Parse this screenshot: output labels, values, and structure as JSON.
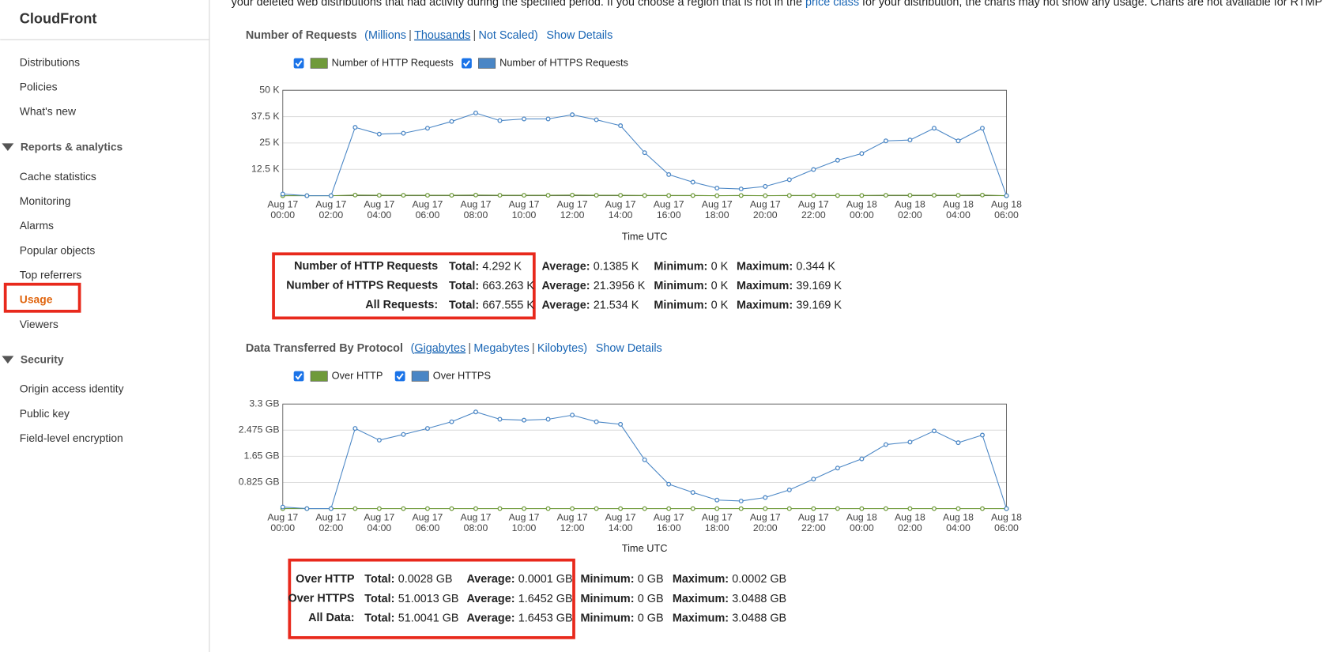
{
  "sidebar": {
    "title": "CloudFront",
    "items": [
      "Distributions",
      "Policies",
      "What's new"
    ],
    "groups": [
      {
        "title": "Reports & analytics",
        "items": [
          "Cache statistics",
          "Monitoring",
          "Alarms",
          "Popular objects",
          "Top referrers",
          "Usage",
          "Viewers"
        ]
      },
      {
        "title": "Security",
        "items": [
          "Origin access identity",
          "Public key",
          "Field-level encryption"
        ]
      }
    ]
  },
  "intro": {
    "text_before": "your deleted web distributions that had activity during the specified period. If you choose a region that is not in the ",
    "link": "price class",
    "text_after": " for your distribution, the charts may not show any usage. Charts are not available for RTMP di"
  },
  "sections": [
    {
      "title": "Number of Requests",
      "open": "(",
      "scales": [
        "Millions",
        "Thousands",
        "Not Scaled"
      ],
      "separator": "|",
      "close": ")",
      "details": "Show Details",
      "stats": {
        "labels": [
          "Total:",
          "Average:",
          "Minimum:",
          "Maximum:"
        ],
        "rows": [
          {
            "name": "Number of HTTP Requests",
            "values": [
              "4.292 K",
              "0.1385 K",
              "0 K",
              "0.344 K"
            ]
          },
          {
            "name": "Number of HTTPS Requests",
            "values": [
              "663.263 K",
              "21.3956 K",
              "0 K",
              "39.169 K"
            ]
          },
          {
            "name": "All Requests:",
            "values": [
              "667.555 K",
              "21.534 K",
              "0 K",
              "39.169 K"
            ]
          }
        ]
      }
    },
    {
      "title": "Data Transferred By Protocol",
      "open": "(",
      "scales": [
        "Gigabytes",
        "Megabytes",
        "Kilobytes"
      ],
      "separator": "|",
      "close": ")",
      "details": "Show Details",
      "stats": {
        "labels": [
          "Total:",
          "Average:",
          "Minimum:",
          "Maximum:"
        ],
        "rows": [
          {
            "name": "Over HTTP",
            "values": [
              "0.0028 GB",
              "0.0001 GB",
              "0 GB",
              "0.0002 GB"
            ]
          },
          {
            "name": "Over HTTPS",
            "values": [
              "51.0013 GB",
              "1.6452 GB",
              "0 GB",
              "3.0488 GB"
            ]
          },
          {
            "name": "All Data:",
            "values": [
              "51.0041 GB",
              "1.6453 GB",
              "0 GB",
              "3.0488 GB"
            ]
          }
        ]
      }
    }
  ],
  "chart_data": [
    {
      "type": "line",
      "x_label": "Time UTC",
      "grid": true,
      "categories": [
        "Aug 17\n00:00",
        null,
        "Aug 17\n02:00",
        null,
        "Aug 17\n04:00",
        null,
        "Aug 17\n06:00",
        null,
        "Aug 17\n08:00",
        null,
        "Aug 17\n10:00",
        null,
        "Aug 17\n12:00",
        null,
        "Aug 17\n14:00",
        null,
        "Aug 17\n16:00",
        null,
        "Aug 17\n18:00",
        null,
        "Aug 17\n20:00",
        null,
        "Aug 17\n22:00",
        null,
        "Aug 18\n00:00",
        null,
        "Aug 18\n02:00",
        null,
        "Aug 18\n04:00",
        null,
        "Aug 18\n06:00"
      ],
      "ylim": [
        0,
        50
      ],
      "yticks": [
        {
          "value": 12.5,
          "label": "12.5 K"
        },
        {
          "value": 25,
          "label": "25 K"
        },
        {
          "value": 37.5,
          "label": "37.5 K"
        },
        {
          "value": 50,
          "label": "50 K"
        }
      ],
      "series": [
        {
          "name": "Number of HTTP Requests",
          "color": "#6f9a3a",
          "values": [
            0,
            0,
            0,
            0.3,
            0.2,
            0.2,
            0.2,
            0.2,
            0.3,
            0.2,
            0.2,
            0.2,
            0.3,
            0.2,
            0.2,
            0.1,
            0.1,
            0.1,
            0,
            0.1,
            0,
            0.1,
            0.1,
            0.1,
            0.1,
            0.2,
            0.2,
            0.2,
            0.2,
            0.3,
            0
          ]
        },
        {
          "name": "Number of HTTPS Requests",
          "color": "#4a86c5",
          "values": [
            0.8,
            0,
            0,
            32.4,
            29.2,
            29.6,
            32,
            35.2,
            39.2,
            35.6,
            36.4,
            36.4,
            38.4,
            36,
            33.2,
            20.4,
            10,
            6.4,
            3.6,
            3.2,
            4.4,
            7.6,
            12.4,
            16.8,
            20,
            26,
            26.4,
            32,
            26,
            32,
            0
          ]
        }
      ]
    },
    {
      "type": "line",
      "x_label": "Time UTC",
      "grid": true,
      "categories": [
        "Aug 17\n00:00",
        null,
        "Aug 17\n02:00",
        null,
        "Aug 17\n04:00",
        null,
        "Aug 17\n06:00",
        null,
        "Aug 17\n08:00",
        null,
        "Aug 17\n10:00",
        null,
        "Aug 17\n12:00",
        null,
        "Aug 17\n14:00",
        null,
        "Aug 17\n16:00",
        null,
        "Aug 17\n18:00",
        null,
        "Aug 17\n20:00",
        null,
        "Aug 17\n22:00",
        null,
        "Aug 18\n00:00",
        null,
        "Aug 18\n02:00",
        null,
        "Aug 18\n04:00",
        null,
        "Aug 18\n06:00"
      ],
      "ylim": [
        0,
        3.3
      ],
      "yticks": [
        {
          "value": 0.825,
          "label": "0.825 GB"
        },
        {
          "value": 1.65,
          "label": "1.65 GB"
        },
        {
          "value": 2.475,
          "label": "2.475 GB"
        },
        {
          "value": 3.3,
          "label": "3.3 GB"
        }
      ],
      "series": [
        {
          "name": "Over HTTP",
          "color": "#6f9a3a",
          "values": [
            0,
            0,
            0,
            0.0001,
            0.0001,
            0.0001,
            0.0001,
            0.0001,
            0.0002,
            0.0001,
            0.0001,
            0.0001,
            0.0001,
            0.0001,
            0.0001,
            0.0001,
            0.0001,
            0,
            0,
            0,
            0,
            0,
            0.0001,
            0.0001,
            0.0001,
            0.0001,
            0.0001,
            0.0001,
            0.0001,
            0.0001,
            0
          ]
        },
        {
          "name": "Over HTTPS",
          "color": "#4a86c5",
          "values": [
            0.05,
            0,
            0,
            2.53,
            2.16,
            2.34,
            2.53,
            2.74,
            3.05,
            2.82,
            2.79,
            2.82,
            2.95,
            2.74,
            2.66,
            1.54,
            0.77,
            0.51,
            0.27,
            0.24,
            0.35,
            0.59,
            0.93,
            1.28,
            1.57,
            2.02,
            2.1,
            2.45,
            2.08,
            2.32,
            0
          ]
        }
      ]
    }
  ]
}
